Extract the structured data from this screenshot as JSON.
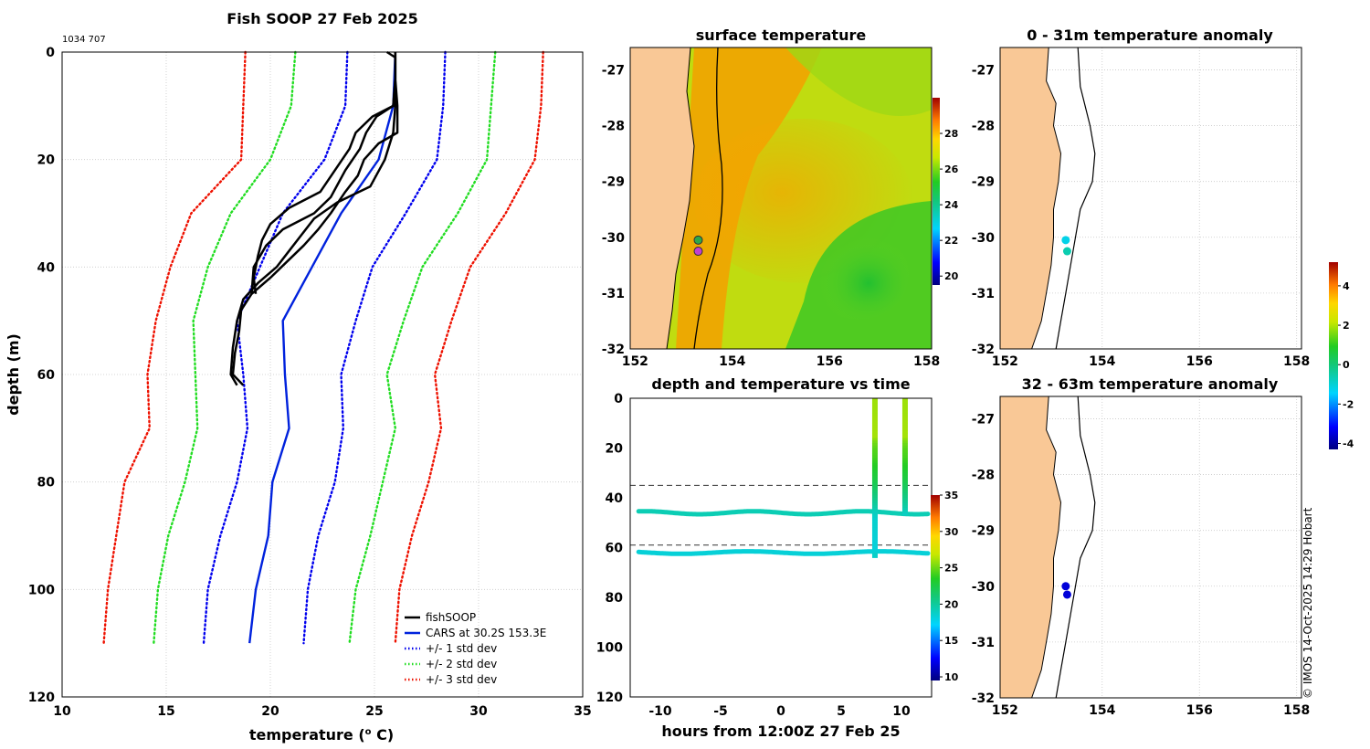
{
  "colors": {
    "fishsoop": "#000000",
    "cars": "#0022dd",
    "std1": "#0000ee",
    "std2": "#22dd22",
    "std3": "#ee1100",
    "land": "#f9c896",
    "text": "#000000"
  },
  "figure_title": "Fish SOOP 27 Feb 2025",
  "ids": "1034 707",
  "copyright": "© IMOS 14-Oct-2025 14:29 Hobart",
  "chart_data": [
    {
      "id": "profile",
      "type": "line",
      "title": "Fish SOOP 27 Feb 2025",
      "xlabel_prefix": "temperature (",
      "xlabel_sup": "o",
      "xlabel_suffix": " C)",
      "ylabel": "depth (m)",
      "xlim": [
        10,
        35
      ],
      "ylim": [
        0,
        120
      ],
      "xticks": [
        "10",
        "15",
        "20",
        "25",
        "30",
        "35"
      ],
      "yticks": [
        "0",
        "20",
        "40",
        "60",
        "80",
        "100",
        "120"
      ],
      "y_inverted": true,
      "grid": true,
      "legend_position": "bottom-right",
      "legend": [
        {
          "label": "fishSOOP",
          "style": "solid-black"
        },
        {
          "label": "CARS at 30.2S 153.3E",
          "style": "solid-blue"
        },
        {
          "label": "+/- 1 std dev",
          "style": "dotted-blue"
        },
        {
          "label": "+/- 2 std dev",
          "style": "dotted-green"
        },
        {
          "label": "+/- 3 std dev",
          "style": "dotted-red"
        }
      ],
      "depth_levels": [
        0,
        10,
        20,
        30,
        40,
        50,
        60,
        70,
        80,
        90,
        100,
        110
      ],
      "series": [
        {
          "name": "CARS at 30.2S 153.3E",
          "values": [
            26.0,
            25.9,
            25.2,
            23.4,
            22.0,
            20.6,
            20.7,
            20.9,
            20.1,
            19.9,
            19.3,
            19.0
          ]
        },
        {
          "name": "+1 std dev",
          "values": [
            28.4,
            28.3,
            28.0,
            26.5,
            24.9,
            24.1,
            23.4,
            23.5,
            23.1,
            22.3,
            21.8,
            21.6
          ]
        },
        {
          "name": "-1 std dev",
          "values": [
            23.7,
            23.6,
            22.6,
            20.6,
            19.5,
            18.4,
            18.7,
            18.9,
            18.4,
            17.6,
            17.0,
            16.8
          ]
        },
        {
          "name": "+2 std dev",
          "values": [
            30.8,
            30.6,
            30.4,
            29.0,
            27.3,
            26.4,
            25.6,
            26.0,
            25.4,
            24.8,
            24.1,
            23.8
          ]
        },
        {
          "name": "-2 std dev",
          "values": [
            21.2,
            21.0,
            20.0,
            18.1,
            17.0,
            16.3,
            16.4,
            16.5,
            15.9,
            15.1,
            14.6,
            14.4
          ]
        },
        {
          "name": "+3 std dev",
          "values": [
            33.1,
            33.0,
            32.7,
            31.3,
            29.6,
            28.7,
            27.9,
            28.2,
            27.6,
            26.8,
            26.2,
            26.0
          ]
        },
        {
          "name": "-3 std dev",
          "values": [
            18.8,
            18.7,
            18.6,
            16.2,
            15.2,
            14.5,
            14.1,
            14.2,
            13.0,
            12.6,
            12.2,
            12.0
          ]
        }
      ],
      "fishsoop_casts": [
        {
          "depth": [
            0,
            1,
            5,
            10,
            12,
            15,
            18,
            22,
            27,
            30,
            33,
            36,
            40,
            45
          ],
          "temp": [
            25.6,
            26.0,
            26.0,
            25.9,
            25.1,
            24.6,
            24.3,
            23.6,
            22.9,
            22.1,
            20.6,
            19.8,
            19.2,
            19.1
          ]
        },
        {
          "depth": [
            0,
            5,
            10,
            12,
            15,
            18,
            22,
            26,
            29,
            32,
            35,
            38,
            42,
            45
          ],
          "temp": [
            26.0,
            26.0,
            25.9,
            24.9,
            24.1,
            23.8,
            23.1,
            22.4,
            20.9,
            20.0,
            19.6,
            19.4,
            19.2,
            19.3
          ]
        },
        {
          "depth": [
            0,
            5,
            10,
            15,
            20,
            25,
            28,
            31,
            34,
            37,
            40,
            43,
            46,
            50,
            55,
            60,
            62
          ],
          "temp": [
            26.0,
            26.0,
            26.0,
            25.9,
            25.5,
            24.8,
            23.2,
            22.1,
            21.5,
            20.9,
            20.3,
            19.4,
            18.7,
            18.4,
            18.2,
            18.1,
            18.4
          ]
        },
        {
          "depth": [
            0,
            5,
            10,
            15,
            17,
            20,
            23,
            26,
            30,
            33,
            36,
            39,
            42,
            45,
            48,
            52,
            56,
            60,
            62
          ],
          "temp": [
            26.0,
            26.0,
            26.1,
            26.1,
            25.2,
            24.5,
            24.2,
            23.6,
            22.9,
            22.3,
            21.6,
            20.8,
            20.0,
            19.1,
            18.6,
            18.5,
            18.3,
            18.2,
            18.7
          ]
        }
      ]
    },
    {
      "id": "sst_map",
      "type": "heatmap",
      "title": "surface temperature",
      "xlim": [
        151.9,
        158.1
      ],
      "ylim": [
        -32,
        -26.6
      ],
      "xticks": [
        "152",
        "154",
        "156",
        "158"
      ],
      "yticks": [
        "-27",
        "-28",
        "-29",
        "-30",
        "-31",
        "-32"
      ],
      "colorbar_range": [
        19.5,
        30
      ],
      "colorbar_ticks": [
        "20",
        "22",
        "24",
        "26",
        "28"
      ],
      "points": [
        {
          "lon": 153.3,
          "lat": -30.05
        },
        {
          "lon": 153.3,
          "lat": -30.25
        }
      ]
    },
    {
      "id": "anomaly_0_31",
      "type": "scatter",
      "title": "0 - 31m temperature anomaly",
      "xlim": [
        151.9,
        158.1
      ],
      "ylim": [
        -32,
        -26.6
      ],
      "xticks": [
        "152",
        "154",
        "156",
        "158"
      ],
      "yticks": [
        "-27",
        "-28",
        "-29",
        "-30",
        "-31",
        "-32"
      ],
      "grid": true,
      "points": [
        {
          "lon": 153.25,
          "lat": -30.05,
          "anomaly": -1.2
        },
        {
          "lon": 153.28,
          "lat": -30.25,
          "anomaly": -0.6
        }
      ]
    },
    {
      "id": "anomaly_32_63",
      "type": "scatter",
      "title": "32 - 63m temperature anomaly",
      "xlim": [
        151.9,
        158.1
      ],
      "ylim": [
        -32,
        -26.6
      ],
      "xticks": [
        "152",
        "154",
        "156",
        "158"
      ],
      "yticks": [
        "-27",
        "-28",
        "-29",
        "-30",
        "-31",
        "-32"
      ],
      "grid": true,
      "points": [
        {
          "lon": 153.25,
          "lat": -30.0,
          "anomaly": -3.5
        },
        {
          "lon": 153.28,
          "lat": -30.15,
          "anomaly": -3.5
        }
      ]
    },
    {
      "id": "depth_time",
      "type": "scatter",
      "title": "depth and temperature vs time",
      "xlabel": "hours from 12:00Z 27 Feb 25",
      "xlim": [
        -12.5,
        12.5
      ],
      "ylim": [
        0,
        120
      ],
      "xticks": [
        "-10",
        "-5",
        "0",
        "5",
        "10"
      ],
      "yticks": [
        "0",
        "20",
        "40",
        "60",
        "80",
        "100",
        "120"
      ],
      "y_inverted": true,
      "dashed_lines_depth": [
        35,
        59
      ],
      "colorbar_range": [
        9.5,
        35
      ],
      "colorbar_ticks": [
        "10",
        "15",
        "20",
        "25",
        "30",
        "35"
      ],
      "tracks": [
        {
          "depth": 46,
          "amplitude": 0.6,
          "period_hours": 9,
          "t_start": -11.8,
          "t_end": 12.2,
          "temp": 19.3
        },
        {
          "depth": 62,
          "amplitude": 0.5,
          "period_hours": 11,
          "t_start": -11.8,
          "t_end": 12.2,
          "temp": 18.3
        }
      ],
      "casts": [
        {
          "t": 7.8,
          "max_depth": 63
        },
        {
          "t": 10.3,
          "max_depth": 46
        }
      ]
    },
    {
      "id": "anomaly_colorbar",
      "type": "colorbar",
      "range": [
        -4.3,
        5.2
      ],
      "ticks": [
        "4",
        "2",
        "0",
        "-2",
        "-4"
      ]
    }
  ]
}
